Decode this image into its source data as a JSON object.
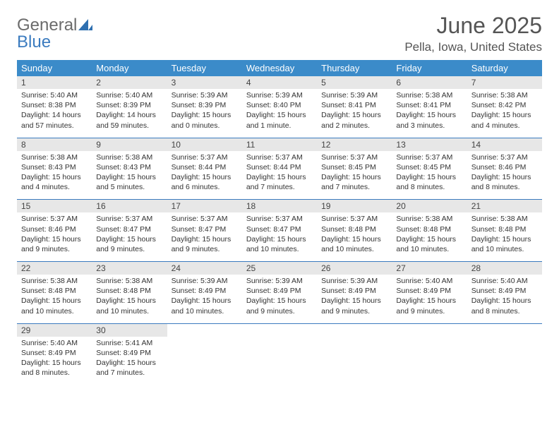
{
  "logo": {
    "text1": "General",
    "text2": "Blue"
  },
  "title": "June 2025",
  "location": "Pella, Iowa, United States",
  "colors": {
    "header_bg": "#3b8bc9",
    "header_fg": "#ffffff",
    "rule": "#3b7bbf",
    "daynum_bg": "#e7e7e7",
    "logo_gray": "#6b6b6b",
    "logo_blue": "#3b7bbf",
    "text": "#333333"
  },
  "day_headers": [
    "Sunday",
    "Monday",
    "Tuesday",
    "Wednesday",
    "Thursday",
    "Friday",
    "Saturday"
  ],
  "weeks": [
    [
      {
        "n": "1",
        "sr": "5:40 AM",
        "ss": "8:38 PM",
        "dl": "14 hours and 57 minutes."
      },
      {
        "n": "2",
        "sr": "5:40 AM",
        "ss": "8:39 PM",
        "dl": "14 hours and 59 minutes."
      },
      {
        "n": "3",
        "sr": "5:39 AM",
        "ss": "8:39 PM",
        "dl": "15 hours and 0 minutes."
      },
      {
        "n": "4",
        "sr": "5:39 AM",
        "ss": "8:40 PM",
        "dl": "15 hours and 1 minute."
      },
      {
        "n": "5",
        "sr": "5:39 AM",
        "ss": "8:41 PM",
        "dl": "15 hours and 2 minutes."
      },
      {
        "n": "6",
        "sr": "5:38 AM",
        "ss": "8:41 PM",
        "dl": "15 hours and 3 minutes."
      },
      {
        "n": "7",
        "sr": "5:38 AM",
        "ss": "8:42 PM",
        "dl": "15 hours and 4 minutes."
      }
    ],
    [
      {
        "n": "8",
        "sr": "5:38 AM",
        "ss": "8:43 PM",
        "dl": "15 hours and 4 minutes."
      },
      {
        "n": "9",
        "sr": "5:38 AM",
        "ss": "8:43 PM",
        "dl": "15 hours and 5 minutes."
      },
      {
        "n": "10",
        "sr": "5:37 AM",
        "ss": "8:44 PM",
        "dl": "15 hours and 6 minutes."
      },
      {
        "n": "11",
        "sr": "5:37 AM",
        "ss": "8:44 PM",
        "dl": "15 hours and 7 minutes."
      },
      {
        "n": "12",
        "sr": "5:37 AM",
        "ss": "8:45 PM",
        "dl": "15 hours and 7 minutes."
      },
      {
        "n": "13",
        "sr": "5:37 AM",
        "ss": "8:45 PM",
        "dl": "15 hours and 8 minutes."
      },
      {
        "n": "14",
        "sr": "5:37 AM",
        "ss": "8:46 PM",
        "dl": "15 hours and 8 minutes."
      }
    ],
    [
      {
        "n": "15",
        "sr": "5:37 AM",
        "ss": "8:46 PM",
        "dl": "15 hours and 9 minutes."
      },
      {
        "n": "16",
        "sr": "5:37 AM",
        "ss": "8:47 PM",
        "dl": "15 hours and 9 minutes."
      },
      {
        "n": "17",
        "sr": "5:37 AM",
        "ss": "8:47 PM",
        "dl": "15 hours and 9 minutes."
      },
      {
        "n": "18",
        "sr": "5:37 AM",
        "ss": "8:47 PM",
        "dl": "15 hours and 10 minutes."
      },
      {
        "n": "19",
        "sr": "5:37 AM",
        "ss": "8:48 PM",
        "dl": "15 hours and 10 minutes."
      },
      {
        "n": "20",
        "sr": "5:38 AM",
        "ss": "8:48 PM",
        "dl": "15 hours and 10 minutes."
      },
      {
        "n": "21",
        "sr": "5:38 AM",
        "ss": "8:48 PM",
        "dl": "15 hours and 10 minutes."
      }
    ],
    [
      {
        "n": "22",
        "sr": "5:38 AM",
        "ss": "8:48 PM",
        "dl": "15 hours and 10 minutes."
      },
      {
        "n": "23",
        "sr": "5:38 AM",
        "ss": "8:48 PM",
        "dl": "15 hours and 10 minutes."
      },
      {
        "n": "24",
        "sr": "5:39 AM",
        "ss": "8:49 PM",
        "dl": "15 hours and 10 minutes."
      },
      {
        "n": "25",
        "sr": "5:39 AM",
        "ss": "8:49 PM",
        "dl": "15 hours and 9 minutes."
      },
      {
        "n": "26",
        "sr": "5:39 AM",
        "ss": "8:49 PM",
        "dl": "15 hours and 9 minutes."
      },
      {
        "n": "27",
        "sr": "5:40 AM",
        "ss": "8:49 PM",
        "dl": "15 hours and 9 minutes."
      },
      {
        "n": "28",
        "sr": "5:40 AM",
        "ss": "8:49 PM",
        "dl": "15 hours and 8 minutes."
      }
    ],
    [
      {
        "n": "29",
        "sr": "5:40 AM",
        "ss": "8:49 PM",
        "dl": "15 hours and 8 minutes."
      },
      {
        "n": "30",
        "sr": "5:41 AM",
        "ss": "8:49 PM",
        "dl": "15 hours and 7 minutes."
      },
      null,
      null,
      null,
      null,
      null
    ]
  ],
  "labels": {
    "sunrise": "Sunrise:",
    "sunset": "Sunset:",
    "daylight": "Daylight:"
  }
}
